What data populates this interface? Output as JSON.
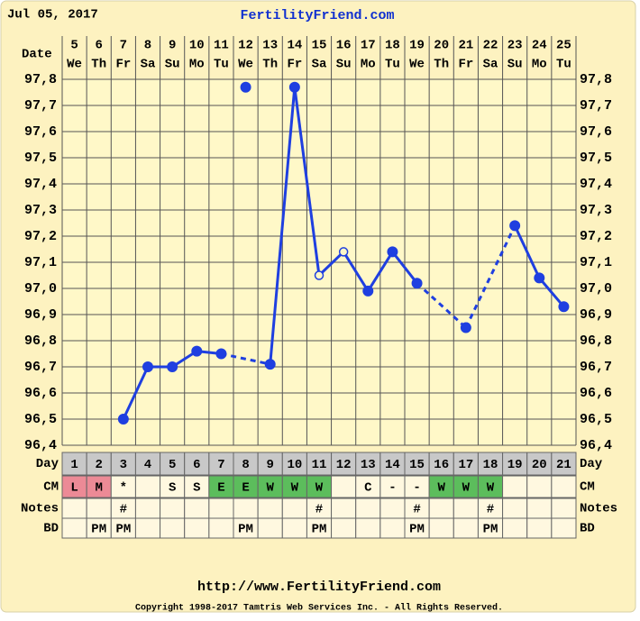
{
  "chart_data": {
    "type": "line",
    "date": "Jul 05, 2017",
    "site": "FertilityFriend.com",
    "date_label": "Date",
    "categories": [
      "5",
      "6",
      "7",
      "8",
      "9",
      "10",
      "11",
      "12",
      "13",
      "14",
      "15",
      "16",
      "17",
      "18",
      "19",
      "20",
      "21",
      "22",
      "23",
      "24",
      "25"
    ],
    "weekdays": [
      "We",
      "Th",
      "Fr",
      "Sa",
      "Su",
      "Mo",
      "Tu",
      "We",
      "Th",
      "Fr",
      "Sa",
      "Su",
      "Mo",
      "Tu",
      "We",
      "Th",
      "Fr",
      "Sa",
      "Su",
      "Mo",
      "Tu"
    ],
    "ylim": [
      96.4,
      97.8
    ],
    "yticks": [
      {
        "value": 96.4,
        "label": "96,4"
      },
      {
        "value": 96.5,
        "label": "96,5"
      },
      {
        "value": 96.6,
        "label": "96,6"
      },
      {
        "value": 96.7,
        "label": "96,7"
      },
      {
        "value": 96.8,
        "label": "96,8"
      },
      {
        "value": 96.9,
        "label": "96,9"
      },
      {
        "value": 97.0,
        "label": "97,0"
      },
      {
        "value": 97.1,
        "label": "97,1"
      },
      {
        "value": 97.2,
        "label": "97,2"
      },
      {
        "value": 97.3,
        "label": "97,3"
      },
      {
        "value": 97.4,
        "label": "97,4"
      },
      {
        "value": 97.5,
        "label": "97,5"
      },
      {
        "value": 97.6,
        "label": "97,6"
      },
      {
        "value": 97.7,
        "label": "97,7"
      },
      {
        "value": 97.8,
        "label": "97,8"
      }
    ],
    "grid": true,
    "series": [
      {
        "color": "#1f3fe0",
        "values": [
          null,
          null,
          96.5,
          96.7,
          96.7,
          96.76,
          96.75,
          97.77,
          96.71,
          97.77,
          97.05,
          97.14,
          96.99,
          97.14,
          97.02,
          null,
          96.85,
          null,
          97.24,
          97.04,
          96.93
        ],
        "open_points": [
          10,
          11
        ],
        "excluded_points": [
          7
        ]
      }
    ],
    "table": {
      "rows": [
        {
          "label": "Day",
          "cells": [
            "1",
            "2",
            "3",
            "4",
            "5",
            "6",
            "7",
            "8",
            "9",
            "10",
            "11",
            "12",
            "13",
            "14",
            "15",
            "16",
            "17",
            "18",
            "19",
            "20",
            "21"
          ],
          "background": "#c8c8c8"
        },
        {
          "label": "CM",
          "cells": [
            "L",
            "M",
            "*",
            null,
            "S",
            "S",
            "E",
            "E",
            "W",
            "W",
            "W",
            null,
            "C",
            "-",
            "-",
            "W",
            "W",
            "W",
            null,
            null,
            null
          ],
          "colors": [
            "#ec8a96",
            "#ec8a96",
            null,
            null,
            null,
            null,
            "#5cbd5c",
            "#5cbd5c",
            "#5cbd5c",
            "#5cbd5c",
            "#5cbd5c",
            null,
            null,
            null,
            null,
            "#5cbd5c",
            "#5cbd5c",
            "#5cbd5c",
            null,
            null,
            null
          ]
        },
        {
          "label": "Notes",
          "cells": [
            null,
            null,
            "#",
            null,
            null,
            null,
            null,
            null,
            null,
            null,
            "#",
            null,
            null,
            null,
            "#",
            null,
            null,
            "#",
            null,
            null,
            null
          ]
        },
        {
          "label": "BD",
          "cells": [
            null,
            "PM",
            "PM",
            null,
            null,
            null,
            null,
            "PM",
            null,
            null,
            "PM",
            null,
            null,
            null,
            "PM",
            null,
            null,
            "PM",
            null,
            null,
            null
          ]
        }
      ]
    },
    "footer_url": "http://www.FertilityFriend.com",
    "copyright": "Copyright 1998-2017 Tamtris Web Services Inc. - All Rights Reserved."
  }
}
